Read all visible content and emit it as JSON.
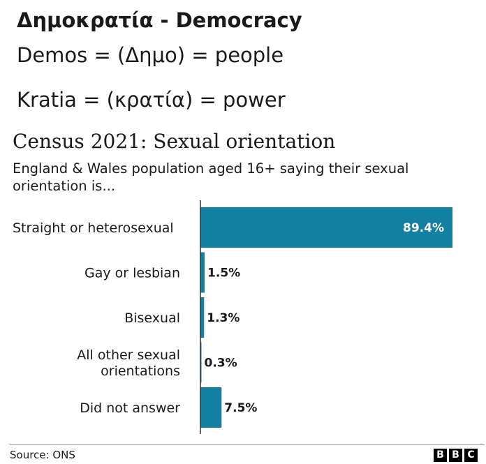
{
  "heading": {
    "title": "Δημοκρατία - Democracy",
    "line1": "Demos = (Δημο) = people",
    "line2": "Kratia = (κρατία) = power"
  },
  "chart_data": {
    "type": "bar",
    "orientation": "horizontal",
    "title": "Census 2021: Sexual orientation",
    "subtitle": "England & Wales population aged 16+ saying their sexual orientation is...",
    "categories": [
      [
        "Straight or heterosexual"
      ],
      [
        "Gay or lesbian"
      ],
      [
        "Bisexual"
      ],
      [
        "All other sexual",
        "orientations"
      ],
      [
        "Did not answer"
      ]
    ],
    "values": [
      89.4,
      1.5,
      1.3,
      0.3,
      7.5
    ],
    "value_labels": [
      "89.4%",
      "1.5%",
      "1.3%",
      "0.3%",
      "7.5%"
    ],
    "xlim": [
      0,
      89.4
    ],
    "bar_color": "#1380a1",
    "grid": false,
    "legend": "none"
  },
  "footer": {
    "source": "Source: ONS",
    "logo_letters": [
      "B",
      "B",
      "C"
    ]
  }
}
